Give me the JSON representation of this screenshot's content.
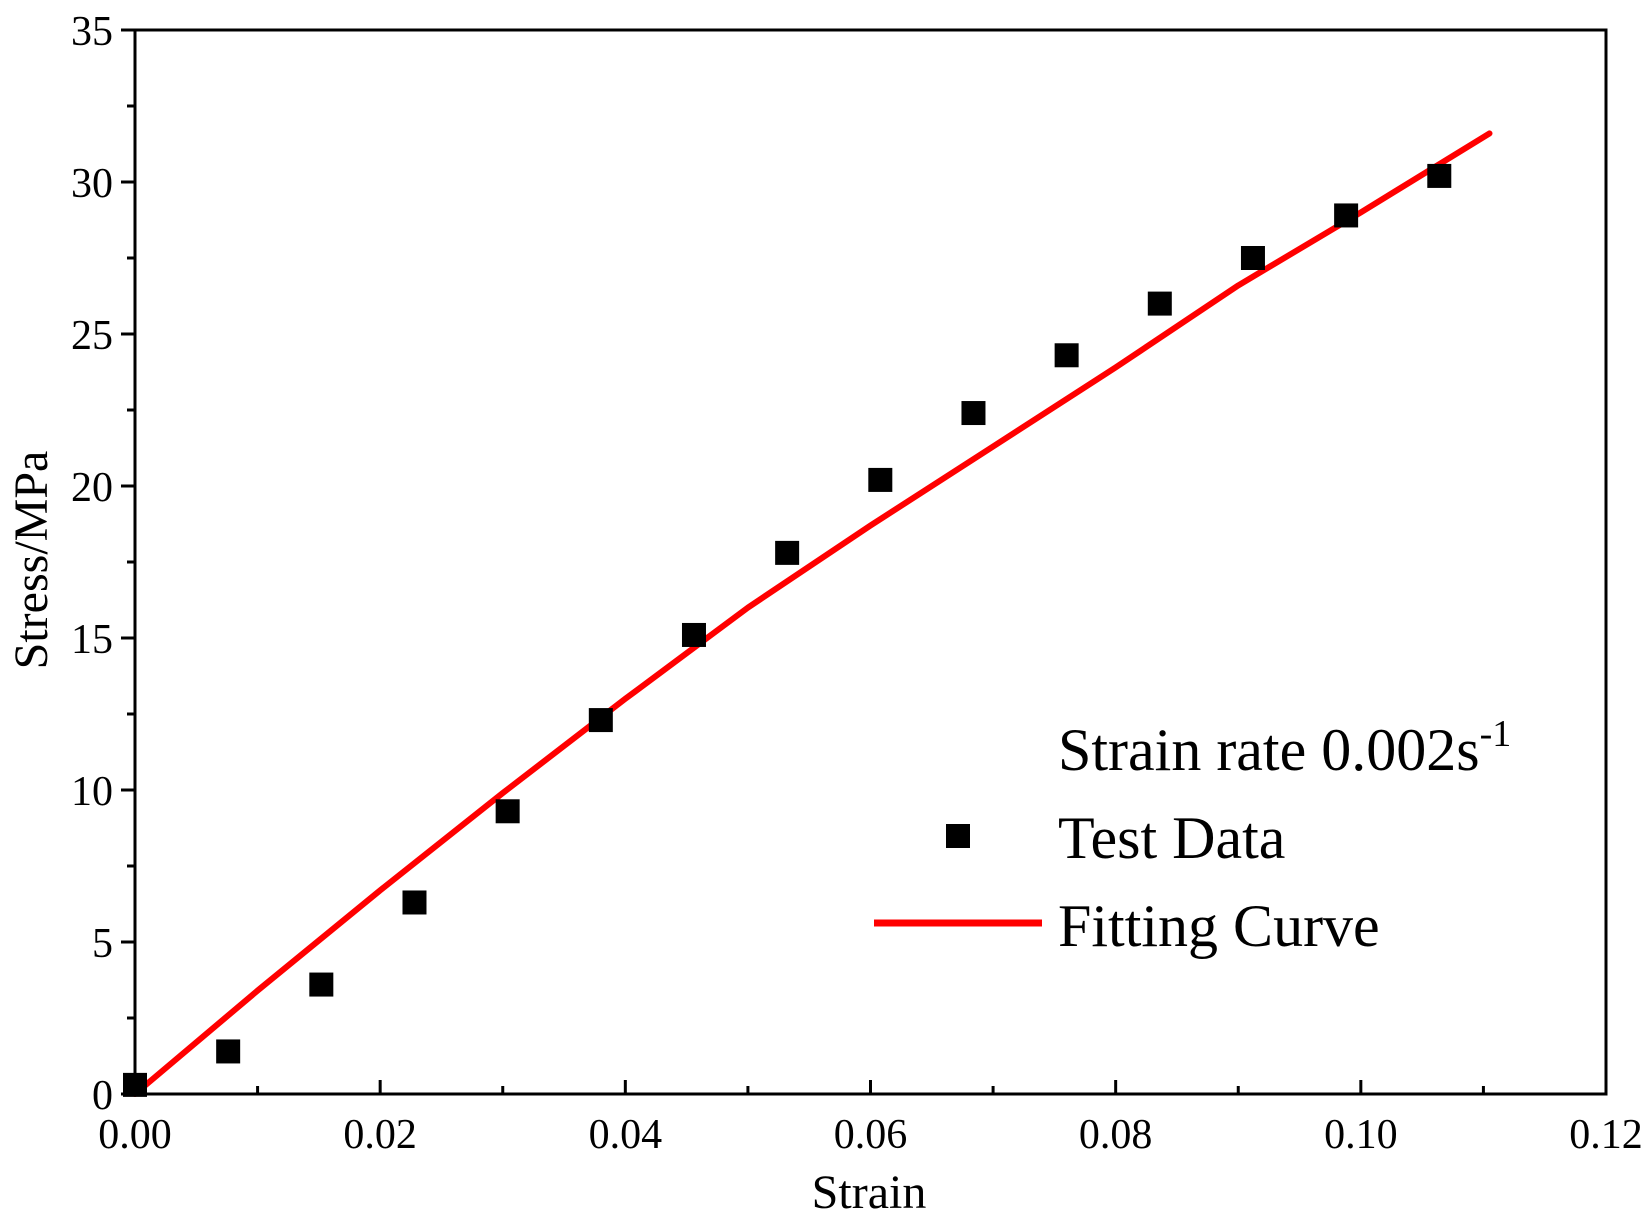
{
  "chart_data": {
    "type": "scatter",
    "title": "",
    "xlabel": "Strain",
    "ylabel": "Stress/MPa",
    "xlim": [
      0.0,
      0.12
    ],
    "ylim": [
      0,
      35
    ],
    "xticks": [
      "0.00",
      "0.02",
      "0.04",
      "0.06",
      "0.08",
      "0.10",
      "0.12"
    ],
    "yticks": [
      "0",
      "5",
      "10",
      "15",
      "20",
      "25",
      "30",
      "35"
    ],
    "annotation": {
      "text": "Strain rate 0.002s",
      "sup": "-1"
    },
    "legend_position": "bottom-right",
    "series": [
      {
        "name": "Test Data",
        "kind": "markers",
        "marker": "square",
        "color": "#000000",
        "x": [
          0.0,
          0.0076,
          0.0152,
          0.0228,
          0.0304,
          0.038,
          0.0456,
          0.0532,
          0.0608,
          0.0684,
          0.076,
          0.0836,
          0.0912,
          0.0988,
          0.1064
        ],
        "y": [
          0.3,
          1.4,
          3.6,
          6.3,
          9.3,
          12.3,
          15.1,
          17.8,
          20.2,
          22.4,
          24.3,
          26.0,
          27.5,
          28.9,
          30.2
        ]
      },
      {
        "name": "Fitting Curve",
        "kind": "line",
        "color": "#ff0000",
        "x": [
          0.0,
          0.01,
          0.02,
          0.03,
          0.04,
          0.05,
          0.06,
          0.07,
          0.08,
          0.09,
          0.1,
          0.1105
        ],
        "y": [
          0.0,
          3.4,
          6.7,
          9.9,
          13.0,
          16.0,
          18.7,
          21.3,
          23.9,
          26.6,
          29.0,
          31.6
        ]
      }
    ]
  }
}
